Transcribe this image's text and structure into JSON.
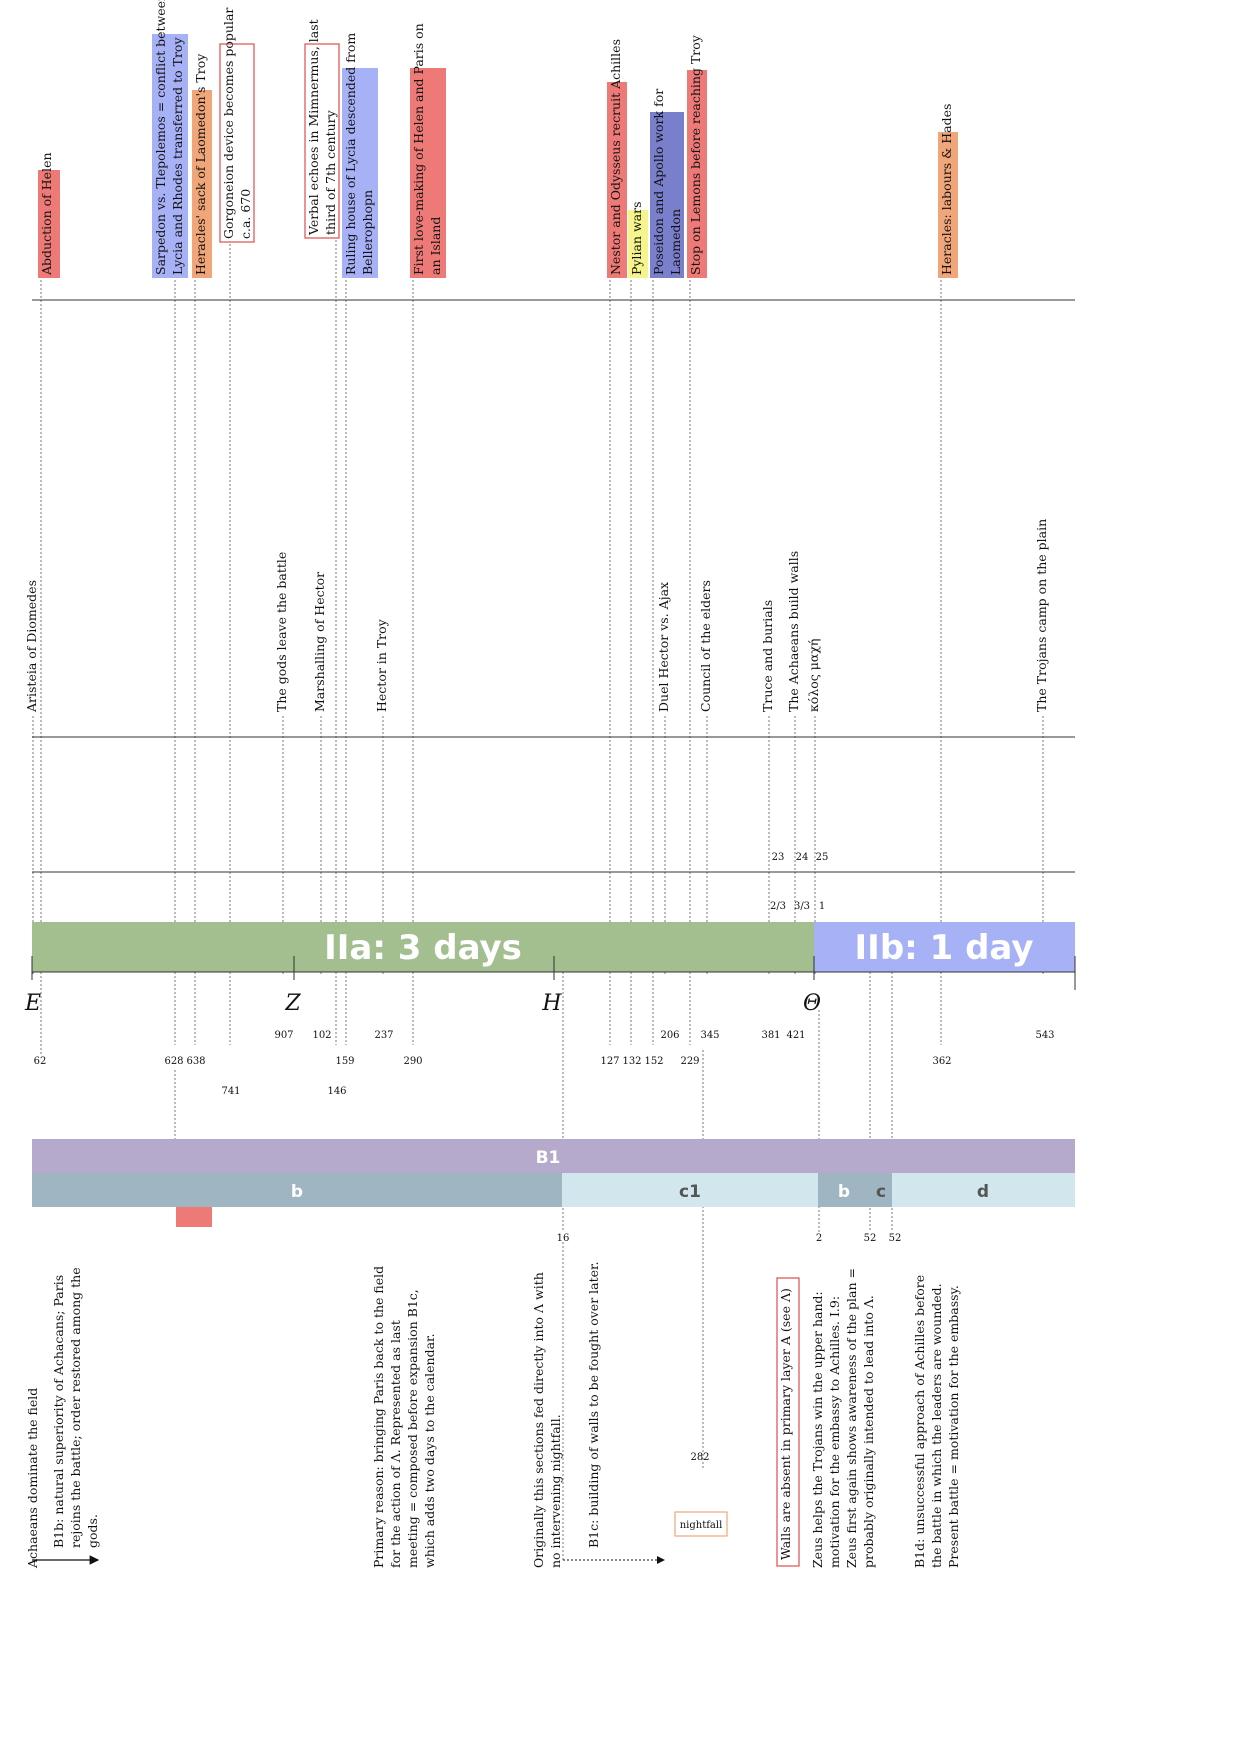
{
  "colors": {
    "red": "#ee7a78",
    "blue": "#a7b1f5",
    "orange": "#f0a678",
    "yellow": "#f6f48c",
    "purple": "#7a7fcc",
    "green": "#a3be8f",
    "phaseBlue": "#a7b1f5",
    "bandPurple": "#b5aacb",
    "bandSteel": "#9fb6c2",
    "bandLight": "#d2e6ee"
  },
  "top_events": [
    {
      "lines": [
        "Abduction of Helen"
      ],
      "color": "red"
    },
    {
      "lines": [
        "Sarpedon vs. Tlepolemos = conflict between",
        "Lycia and Rhodes transferred to Troy"
      ],
      "color": "blue"
    },
    {
      "lines": [
        "Heracles' sack of Laomedon's Troy"
      ],
      "color": "orange"
    },
    {
      "lines": [
        "Gorgoneion device becomes popular",
        "c.a. 670"
      ],
      "color": "outline"
    },
    {
      "lines": [
        "Verbal echoes in Mimnermus, last",
        "third of 7th century"
      ],
      "color": "outline"
    },
    {
      "lines": [
        "Ruling house of Lycia descended from",
        "Bellerophopn"
      ],
      "color": "blue"
    },
    {
      "lines": [
        "First love-making of Helen and Paris on",
        "an Island"
      ],
      "color": "red"
    },
    {
      "lines": [
        "Nestor and Odysseus recruit Achilles"
      ],
      "color": "red"
    },
    {
      "lines": [
        "Pylian wars"
      ],
      "color": "yellow"
    },
    {
      "lines": [
        "Poseidon and Apollo work for",
        "Laomedon"
      ],
      "color": "purple"
    },
    {
      "lines": [
        "Stop on Lemons before reaching Troy"
      ],
      "color": "red"
    },
    {
      "lines": [
        "Heracles: labours & Hades"
      ],
      "color": "orange"
    }
  ],
  "mid_events": [
    "Aristeia of Diomedes",
    "The gods leave the battle",
    "Marshalling of Hector",
    "Hector in Troy",
    "Duel Hector vs. Ajax",
    "Council of the elders",
    "Truce and burials",
    "The Achaeans build walls",
    "κόλος μαχή",
    "The Trojans camp on the plain"
  ],
  "day_numbers": [
    "23",
    "24",
    "25"
  ],
  "day_fractions": [
    "2/3",
    "3/3",
    "1"
  ],
  "phases": [
    {
      "label": "IIa:  3 days",
      "color": "green"
    },
    {
      "label": "IIb:  1 day",
      "color": "phaseBlue"
    }
  ],
  "books": [
    "E",
    "Z",
    "H",
    "Θ"
  ],
  "line_numbers_row1": [
    "907",
    "102",
    "237",
    "206",
    "345",
    "381",
    "421",
    "543"
  ],
  "line_numbers_row2": [
    "62",
    "628",
    "638",
    "159",
    "290",
    "127",
    "132",
    "152",
    "229",
    "362"
  ],
  "line_numbers_row3": [
    "741",
    "146"
  ],
  "band_b1": "B1",
  "bands": [
    {
      "label": "b",
      "color": "bandSteel"
    },
    {
      "label": "c1",
      "color": "bandLight"
    },
    {
      "label": "b",
      "color": "bandSteel"
    },
    {
      "label": "c",
      "color": "bandSteel"
    },
    {
      "label": "d",
      "color": "bandLight"
    }
  ],
  "lower_numbers": [
    "16",
    "2",
    "52",
    "52",
    "282"
  ],
  "nightfall": "nightfall",
  "notes": [
    {
      "lines": [
        "Achaeans dominate the field"
      ]
    },
    {
      "lines": [
        "B1b: natural superiority of Achacans; Paris",
        "rejoins the battle; order restored among the",
        "gods."
      ]
    },
    {
      "lines": [
        "Primary reason: bringing Paris back to the field",
        "for the action of Λ. Represented as last",
        "meeting = composed before expansion B1c,",
        "which adds two days to the calendar."
      ]
    },
    {
      "lines": [
        "Originally this sections fed directly into Λ with",
        "no intervening nightfall."
      ]
    },
    {
      "lines": [
        "B1c: building of walls to be fought over later."
      ]
    },
    {
      "lines": [
        "Walls are absent in primary layer A (see Λ)"
      ]
    },
    {
      "lines": [
        "Zeus helps the Trojans win the upper hand:",
        "motivation for the embassy to Achilles. I.9:",
        "Zeus first again shows awareness of the plan =",
        "probably originally intended to lead into Λ."
      ]
    },
    {
      "lines": [
        "B1d: unsuccessful approach of Achilles before",
        "the battle in which the leaders are wounded.",
        "Present battle = motivation for the embassy."
      ]
    }
  ]
}
